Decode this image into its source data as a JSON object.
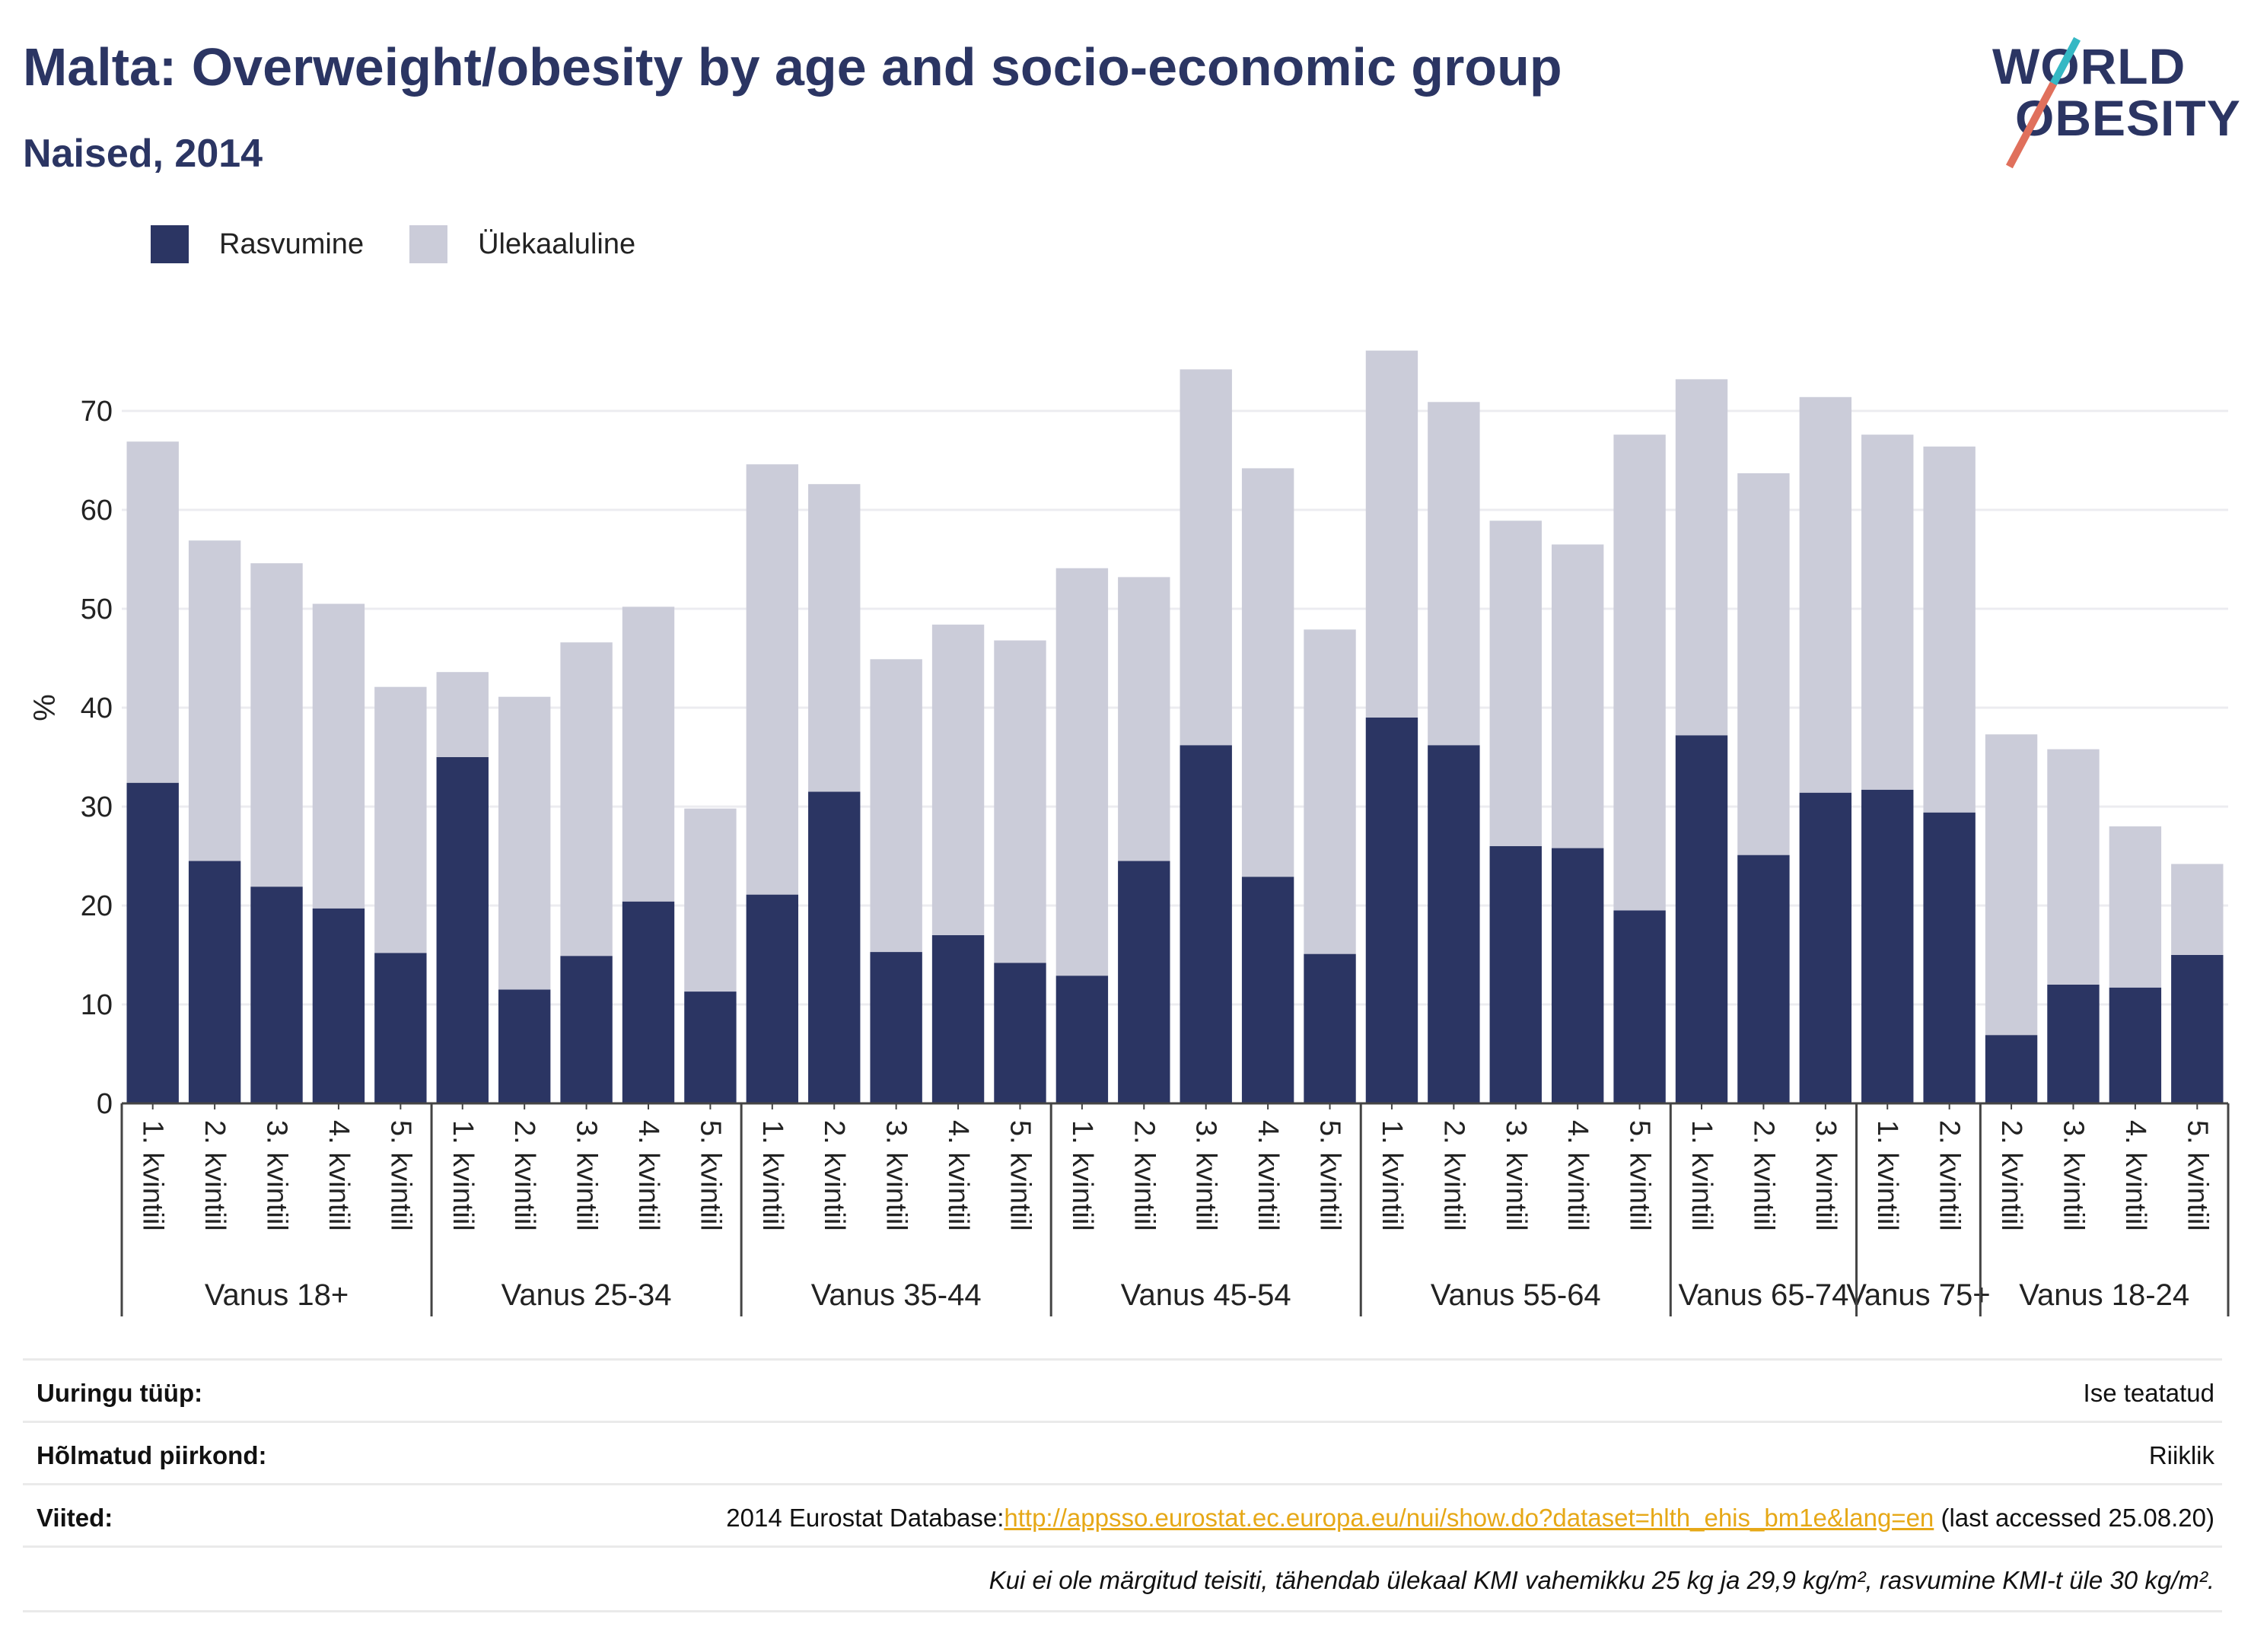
{
  "header": {
    "title": "Malta: Overweight/obesity by age and socio-economic group",
    "subtitle": "Naised, 2014"
  },
  "logo": {
    "line1": "WORLD",
    "line2": "OBESITY"
  },
  "legend": {
    "items": [
      {
        "label": "Rasvumine",
        "color": "#2b3563"
      },
      {
        "label": "Ülekaaluline",
        "color": "#cbccd9"
      }
    ]
  },
  "chart_data": {
    "type": "bar",
    "stacked": true,
    "ylabel": "%",
    "ylim": [
      0,
      80
    ],
    "yticks": [
      0,
      10,
      20,
      30,
      40,
      50,
      60,
      70
    ],
    "grid": true,
    "legend_position": "top-left",
    "groups": [
      {
        "label": "Vanus 18+",
        "categories": [
          "1. kvintiil",
          "2. kvintiil",
          "3. kvintiil",
          "4. kvintiil",
          "5. kvintiil"
        ],
        "obese": [
          32.4,
          24.5,
          21.9,
          19.7,
          15.2
        ],
        "total": [
          66.9,
          56.9,
          54.6,
          50.5,
          42.1
        ]
      },
      {
        "label": "Vanus 25-34",
        "categories": [
          "1. kvintiil",
          "2. kvintiil",
          "3. kvintiil",
          "4. kvintiil",
          "5. kvintiil"
        ],
        "obese": [
          35.0,
          11.5,
          14.9,
          20.4,
          11.3
        ],
        "total": [
          43.6,
          41.1,
          46.6,
          50.2,
          29.8
        ]
      },
      {
        "label": "Vanus 35-44",
        "categories": [
          "1. kvintiil",
          "2. kvintiil",
          "3. kvintiil",
          "4. kvintiil",
          "5. kvintiil"
        ],
        "obese": [
          21.1,
          31.5,
          15.3,
          17.0,
          14.2
        ],
        "total": [
          64.6,
          62.6,
          44.9,
          48.4,
          46.8
        ]
      },
      {
        "label": "Vanus 45-54",
        "categories": [
          "1. kvintiil",
          "2. kvintiil",
          "3. kvintiil",
          "4. kvintiil",
          "5. kvintiil"
        ],
        "obese": [
          12.9,
          24.5,
          36.2,
          22.9,
          15.1
        ],
        "total": [
          54.1,
          53.2,
          74.2,
          64.2,
          47.9
        ]
      },
      {
        "label": "Vanus 55-64",
        "categories": [
          "1. kvintiil",
          "2. kvintiil",
          "3. kvintiil",
          "4. kvintiil",
          "5. kvintiil"
        ],
        "obese": [
          39.0,
          36.2,
          26.0,
          25.8,
          19.5
        ],
        "total": [
          76.1,
          70.9,
          58.9,
          56.5,
          67.6
        ]
      },
      {
        "label": "Vanus 65-74",
        "categories": [
          "1. kvintiil",
          "2. kvintiil",
          "3. kvintiil"
        ],
        "obese": [
          37.2,
          25.1,
          31.4
        ],
        "total": [
          73.2,
          63.7,
          71.4
        ]
      },
      {
        "label": "Vanus 75+",
        "categories": [
          "1. kvintiil",
          "2. kvintiil"
        ],
        "obese": [
          31.7,
          29.4
        ],
        "total": [
          67.6,
          66.4
        ]
      },
      {
        "label": "Vanus 18-24",
        "categories": [
          "2. kvintiil",
          "3. kvintiil",
          "4. kvintiil",
          "5. kvintiil"
        ],
        "obese": [
          6.9,
          12.0,
          11.7,
          15.0
        ],
        "total": [
          37.3,
          35.8,
          28.0,
          24.2
        ]
      }
    ]
  },
  "info": {
    "rows": [
      {
        "key": "Uuringu tüüp:",
        "value": "Ise teatatud"
      },
      {
        "key": "Hõlmatud piirkond:",
        "value": "Riiklik"
      },
      {
        "key": "Viited:",
        "value_prefix": "2014 Eurostat Database:",
        "link": "http://appsso.eurostat.ec.europa.eu/nui/show.do?dataset=hlth_ehis_bm1e&lang=en",
        "value_suffix": " (last accessed 25.08.20)"
      }
    ],
    "note": "Kui ei ole märgitud teisiti, tähendab ülekaal KMI vahemikku 25 kg ja 29,9 kg/m², rasvumine KMI-t üle 30 kg/m²."
  }
}
